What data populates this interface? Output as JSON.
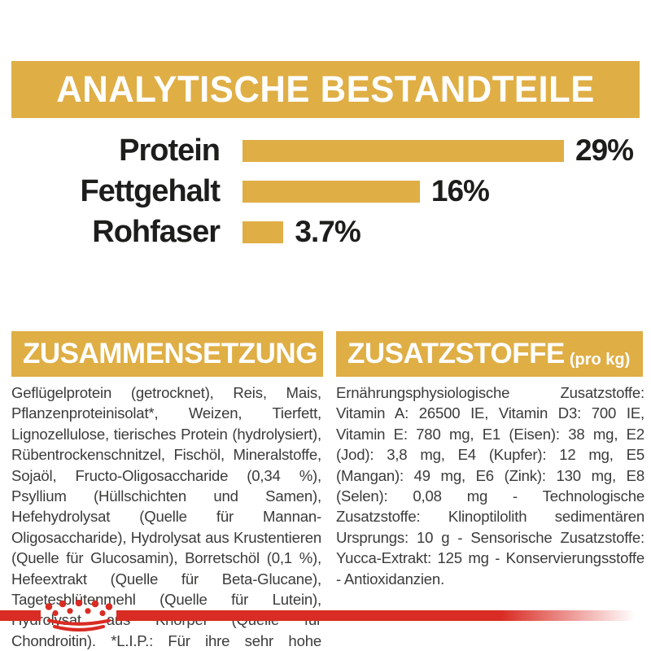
{
  "header": {
    "title": "ANALYTISCHE BESTANDTEILE"
  },
  "chart_data": {
    "type": "bar",
    "orientation": "horizontal",
    "categories": [
      "Protein",
      "Fettgehalt",
      "Rohfaser"
    ],
    "values": [
      29,
      16,
      3.7
    ],
    "value_labels": [
      "29%",
      "16%",
      "3.7%"
    ],
    "unit": "%",
    "xlim": [
      0,
      29
    ],
    "bar_color": "#DFAE45",
    "grid": false,
    "legend": false,
    "title": "ANALYTISCHE BESTANDTEILE"
  },
  "sections": {
    "composition": {
      "title": "ZUSAMMENSETZUNG",
      "body": "Geflügelprotein (getrocknet), Reis, Mais, Pflanzenproteinisolat*, Weizen, Tierfett, Lignozellulose, tierisches Protein (hydrolysiert), Rübentrockenschnitzel, Fischöl, Mineralstoffe, Sojaöl, Fructo-Oligosaccharide (0,34 %), Psyllium (Hüllschichten und Samen), Hefehydrolysat (Quelle für Mannan-Oligosaccharide), Hydrolysat aus Krustentieren (Quelle für Glucosamin), Borretschöl (0,1 %), Hefeextrakt (Quelle für Beta-Glucane), Tagetesblütenmehl (Quelle für Lutein), Hydrolysat aus Knorpel (Quelle für Chondroitin). *L.I.P.: Für ihre sehr hohe Verdaulichkeit ausgewählte Proteine."
    },
    "additives": {
      "title": "ZUSATZSTOFFE",
      "title_suffix": "(pro kg)",
      "body": "Ernährungsphysiologische Zusatzstoffe: Vitamin A: 26500 IE, Vitamin D3: 700 IE, Vitamin E: 780 mg, E1 (Eisen): 38 mg, E2 (Jod): 3,8 mg, E4 (Kupfer): 12 mg, E5 (Mangan): 49 mg, E6 (Zink): 130 mg, E8 (Selen): 0,08 mg - Technologische Zusatzstoffe: Klinoptilolith sedimentären Ursprungs: 10 g - Sensorische Zusatzstoffe: Yucca-Extrakt: 125 mg - Konservierungsstoffe - Antioxidanzien."
    }
  },
  "footer": {
    "logo": "royal-canin-crown"
  },
  "colors": {
    "gold": "#DFAE45",
    "red": "#D92C24",
    "text": "#3B3B3A",
    "chart_text": "#1D1D1B"
  }
}
